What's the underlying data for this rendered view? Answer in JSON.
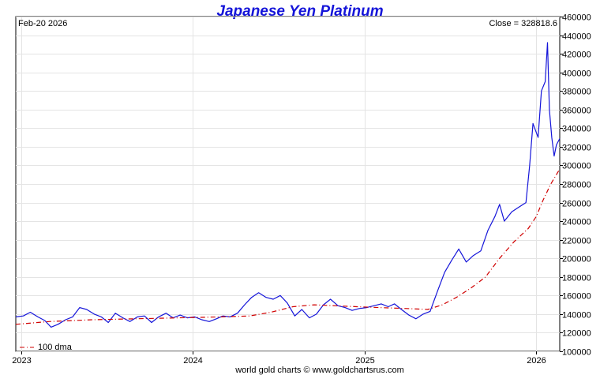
{
  "chart_data": {
    "type": "line",
    "title": "Japanese Yen Platinum",
    "date_label": "Feb-20  2026",
    "close_label": "Close = 328818.6",
    "footer": "world gold charts © www.goldchartsrus.com",
    "ylim": [
      100000,
      460000
    ],
    "y_ticks": [
      100000,
      120000,
      140000,
      160000,
      180000,
      200000,
      220000,
      240000,
      260000,
      280000,
      300000,
      320000,
      340000,
      360000,
      380000,
      400000,
      420000,
      440000,
      460000
    ],
    "x_ticks": [
      "2023",
      "2024",
      "2025",
      "2026"
    ],
    "xlim": [
      "2022-12-20",
      "2026-02-20"
    ],
    "grid": true,
    "legend_position": "bottom-left",
    "series": [
      {
        "name": "",
        "color": "#1515d9",
        "style": "solid",
        "points": [
          [
            "2022-12-20",
            137000
          ],
          [
            "2023-01-05",
            138000
          ],
          [
            "2023-01-20",
            142000
          ],
          [
            "2023-02-05",
            137000
          ],
          [
            "2023-02-20",
            133000
          ],
          [
            "2023-03-05",
            126000
          ],
          [
            "2023-03-20",
            129000
          ],
          [
            "2023-04-05",
            134000
          ],
          [
            "2023-04-20",
            137000
          ],
          [
            "2023-05-05",
            147000
          ],
          [
            "2023-05-20",
            145000
          ],
          [
            "2023-06-05",
            140000
          ],
          [
            "2023-06-20",
            137000
          ],
          [
            "2023-07-05",
            131000
          ],
          [
            "2023-07-20",
            141000
          ],
          [
            "2023-08-05",
            136000
          ],
          [
            "2023-08-20",
            132000
          ],
          [
            "2023-09-05",
            137000
          ],
          [
            "2023-09-20",
            138000
          ],
          [
            "2023-10-05",
            131000
          ],
          [
            "2023-10-20",
            137000
          ],
          [
            "2023-11-05",
            141000
          ],
          [
            "2023-11-20",
            136000
          ],
          [
            "2023-12-05",
            139000
          ],
          [
            "2023-12-20",
            136000
          ],
          [
            "2024-01-05",
            137000
          ],
          [
            "2024-01-20",
            134000
          ],
          [
            "2024-02-05",
            132000
          ],
          [
            "2024-02-20",
            135000
          ],
          [
            "2024-03-05",
            138000
          ],
          [
            "2024-03-20",
            137000
          ],
          [
            "2024-04-05",
            141000
          ],
          [
            "2024-04-20",
            150000
          ],
          [
            "2024-05-05",
            158000
          ],
          [
            "2024-05-20",
            163000
          ],
          [
            "2024-06-05",
            158000
          ],
          [
            "2024-06-20",
            156000
          ],
          [
            "2024-07-05",
            160000
          ],
          [
            "2024-07-20",
            152000
          ],
          [
            "2024-08-05",
            138000
          ],
          [
            "2024-08-20",
            145000
          ],
          [
            "2024-09-05",
            136000
          ],
          [
            "2024-09-20",
            140000
          ],
          [
            "2024-10-05",
            150000
          ],
          [
            "2024-10-20",
            156000
          ],
          [
            "2024-11-05",
            149000
          ],
          [
            "2024-11-20",
            147000
          ],
          [
            "2024-12-05",
            144000
          ],
          [
            "2024-12-20",
            146000
          ],
          [
            "2025-01-05",
            147000
          ],
          [
            "2025-01-20",
            149000
          ],
          [
            "2025-02-05",
            151000
          ],
          [
            "2025-02-20",
            148000
          ],
          [
            "2025-03-05",
            151000
          ],
          [
            "2025-03-20",
            145000
          ],
          [
            "2025-04-05",
            139000
          ],
          [
            "2025-04-20",
            135000
          ],
          [
            "2025-05-05",
            140000
          ],
          [
            "2025-05-20",
            143000
          ],
          [
            "2025-06-05",
            165000
          ],
          [
            "2025-06-20",
            185000
          ],
          [
            "2025-07-05",
            198000
          ],
          [
            "2025-07-20",
            210000
          ],
          [
            "2025-08-05",
            196000
          ],
          [
            "2025-08-20",
            203000
          ],
          [
            "2025-09-05",
            208000
          ],
          [
            "2025-09-20",
            230000
          ],
          [
            "2025-10-05",
            245000
          ],
          [
            "2025-10-15",
            258000
          ],
          [
            "2025-10-25",
            240000
          ],
          [
            "2025-11-10",
            250000
          ],
          [
            "2025-11-25",
            255000
          ],
          [
            "2025-12-10",
            260000
          ],
          [
            "2025-12-18",
            300000
          ],
          [
            "2025-12-25",
            345000
          ],
          [
            "2026-01-05",
            330000
          ],
          [
            "2026-01-12",
            380000
          ],
          [
            "2026-01-20",
            390000
          ],
          [
            "2026-01-25",
            432000
          ],
          [
            "2026-01-29",
            360000
          ],
          [
            "2026-02-03",
            330000
          ],
          [
            "2026-02-08",
            310000
          ],
          [
            "2026-02-13",
            322000
          ],
          [
            "2026-02-20",
            328819
          ]
        ]
      },
      {
        "name": "100 dma",
        "color": "#d00000",
        "style": "dash-dot",
        "points": [
          [
            "2022-12-20",
            129000
          ],
          [
            "2023-03-01",
            132000
          ],
          [
            "2023-06-01",
            134000
          ],
          [
            "2023-09-01",
            135000
          ],
          [
            "2023-12-01",
            136000
          ],
          [
            "2024-03-01",
            137000
          ],
          [
            "2024-05-01",
            138000
          ],
          [
            "2024-06-15",
            142000
          ],
          [
            "2024-08-01",
            148000
          ],
          [
            "2024-09-15",
            150000
          ],
          [
            "2024-11-01",
            149000
          ],
          [
            "2024-12-15",
            148000
          ],
          [
            "2025-02-01",
            147000
          ],
          [
            "2025-04-01",
            146000
          ],
          [
            "2025-05-15",
            145000
          ],
          [
            "2025-06-15",
            150000
          ],
          [
            "2025-07-15",
            158000
          ],
          [
            "2025-08-15",
            168000
          ],
          [
            "2025-09-15",
            180000
          ],
          [
            "2025-10-15",
            200000
          ],
          [
            "2025-11-15",
            218000
          ],
          [
            "2025-12-15",
            232000
          ],
          [
            "2026-01-01",
            245000
          ],
          [
            "2026-01-15",
            262000
          ],
          [
            "2026-02-01",
            280000
          ],
          [
            "2026-02-20",
            296000
          ]
        ]
      }
    ]
  }
}
